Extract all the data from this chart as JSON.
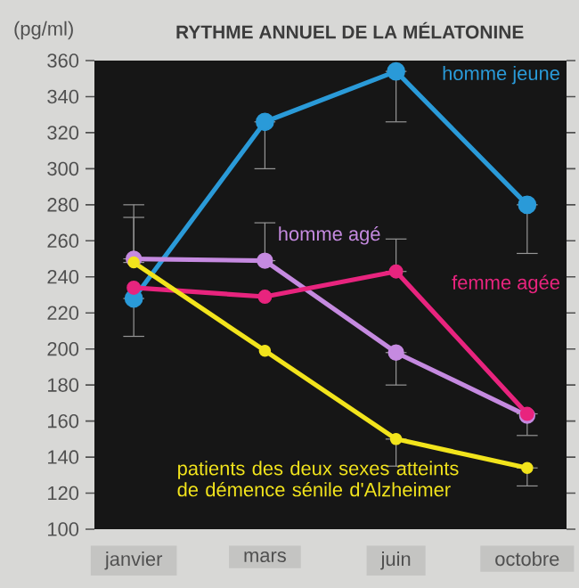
{
  "chart_data": {
    "type": "line",
    "title": "RYTHME ANNUEL DE LA MÉLATONINE",
    "ylabel": "(pg/ml)",
    "categories": [
      "janvier",
      "mars",
      "juin",
      "octobre"
    ],
    "ylim": [
      100,
      360
    ],
    "yticks": [
      100,
      120,
      140,
      160,
      180,
      200,
      220,
      240,
      260,
      280,
      300,
      320,
      340,
      360
    ],
    "marker": "circle",
    "line_style": "solid",
    "grid": false,
    "legend": false,
    "series": [
      {
        "name": "homme jeune",
        "color": "#2a9ad8",
        "values": [
          228,
          326,
          354,
          280
        ],
        "errors": [
          [
            207,
            228
          ],
          [
            300,
            326
          ],
          [
            326,
            354
          ],
          [
            253,
            280
          ]
        ]
      },
      {
        "name": "homme agé",
        "color": "#c58ae0",
        "values": [
          250,
          249,
          198,
          163
        ],
        "errors": [
          [
            250,
            280
          ],
          [
            249,
            270
          ],
          [
            180,
            198
          ],
          null
        ]
      },
      {
        "name": "femme agée",
        "color": "#e8247e",
        "values": [
          234,
          229,
          243,
          164
        ],
        "errors": [
          null,
          null,
          [
            243,
            261
          ],
          [
            152,
            164
          ]
        ]
      },
      {
        "name": "patients des deux sexes atteints de démence sénile d'Alzheimer",
        "color": "#f2e41c",
        "values": [
          248,
          199,
          150,
          134
        ],
        "errors": [
          [
            248,
            273
          ],
          null,
          [
            135,
            150
          ],
          [
            124,
            134
          ]
        ]
      }
    ]
  }
}
